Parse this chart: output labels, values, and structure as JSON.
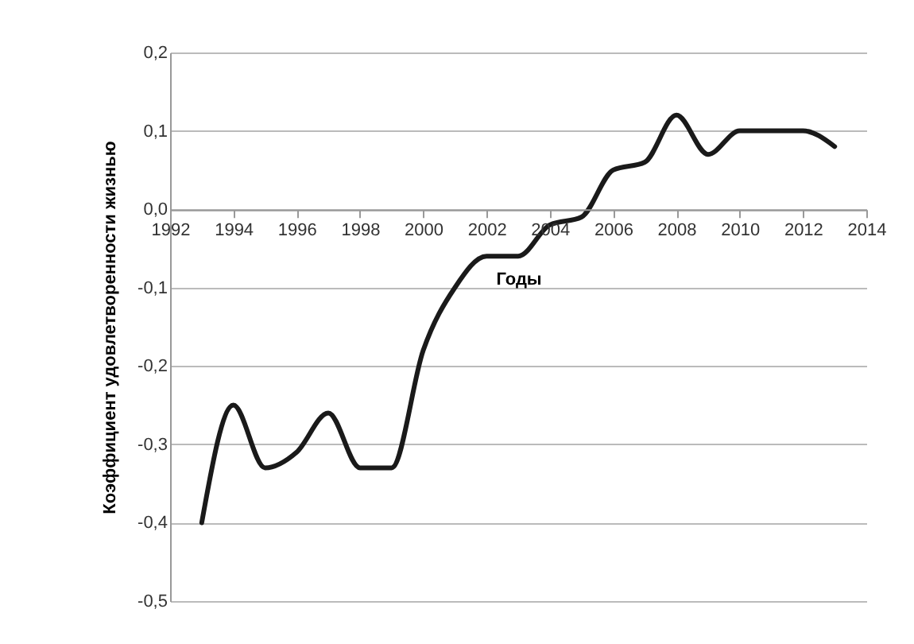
{
  "chart_data": {
    "type": "line",
    "xlabel": "Годы",
    "ylabel": "Коэффициент удовлетворенности жизнью",
    "x": [
      1993,
      1994,
      1995,
      1996,
      1997,
      1998,
      1999,
      2000,
      2001,
      2002,
      2003,
      2004,
      2005,
      2006,
      2007,
      2008,
      2009,
      2010,
      2011,
      2012,
      2013
    ],
    "series": [
      {
        "color": "#1a1a1a",
        "values": [
          -0.4,
          -0.25,
          -0.33,
          -0.31,
          -0.26,
          -0.33,
          -0.33,
          -0.18,
          -0.1,
          -0.06,
          -0.06,
          -0.02,
          -0.01,
          0.05,
          0.06,
          0.12,
          0.07,
          0.1,
          0.1,
          0.1,
          0.08
        ]
      }
    ],
    "xlim": [
      1992,
      2014
    ],
    "xticks": [
      1992,
      1994,
      1996,
      1998,
      2000,
      2002,
      2004,
      2006,
      2008,
      2010,
      2012,
      2014
    ],
    "ylim": [
      -0.5,
      0.2
    ],
    "yticks": [
      {
        "value": -0.5,
        "label": "-0,5"
      },
      {
        "value": -0.4,
        "label": "-0,4"
      },
      {
        "value": -0.3,
        "label": "-0,3"
      },
      {
        "value": -0.2,
        "label": "-0,2"
      },
      {
        "value": -0.1,
        "label": "-0,1"
      },
      {
        "value": 0.0,
        "label": "0,0"
      },
      {
        "value": 0.1,
        "label": "0,1"
      },
      {
        "value": 0.2,
        "label": "0,2"
      }
    ],
    "grid": "y",
    "legend": false
  }
}
